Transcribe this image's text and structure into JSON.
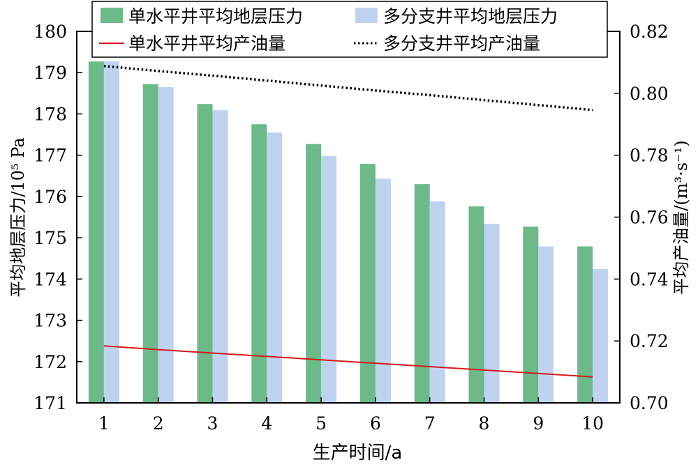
{
  "chart_data": {
    "type": "bar",
    "categories": [
      "1",
      "2",
      "3",
      "4",
      "5",
      "6",
      "7",
      "8",
      "9",
      "10"
    ],
    "xlabel": "生产时间/a",
    "ylabel_left": "平均地层压力/10⁵ Pa",
    "ylabel_right": "平均产油量/(m³·s⁻¹)",
    "ylim_left": [
      171,
      180
    ],
    "ylim_right": [
      0.7,
      0.82
    ],
    "yticks_left": [
      "171",
      "172",
      "173",
      "174",
      "175",
      "176",
      "177",
      "178",
      "179",
      "180"
    ],
    "yticks_right": [
      "0.70",
      "0.72",
      "0.74",
      "0.76",
      "0.78",
      "0.80",
      "0.82"
    ],
    "series": [
      {
        "name": "单水平井平均地层压力",
        "kind": "bar",
        "axis": "left",
        "color": "#6db98a",
        "values": [
          179.27,
          178.72,
          178.24,
          177.75,
          177.27,
          176.79,
          176.3,
          175.76,
          175.27,
          174.79
        ]
      },
      {
        "name": "多分支井平均地层压力",
        "kind": "bar",
        "axis": "left",
        "color": "#bfd3f0",
        "values": [
          179.27,
          178.65,
          178.09,
          177.55,
          176.98,
          176.43,
          175.88,
          175.34,
          174.79,
          174.24
        ]
      },
      {
        "name": "单水平井平均产油量",
        "kind": "line",
        "axis": "right",
        "color": "#d6191a",
        "style": "solid",
        "values": [
          0.7184,
          0.7172,
          0.7161,
          0.715,
          0.7139,
          0.7128,
          0.7117,
          0.7106,
          0.7095,
          0.7084
        ]
      },
      {
        "name": "多分支井平均产油量",
        "kind": "line",
        "axis": "right",
        "color": "#000000",
        "style": "dotted",
        "values": [
          0.8088,
          0.8072,
          0.8057,
          0.8041,
          0.8025,
          0.8009,
          0.7994,
          0.7978,
          0.7962,
          0.7946
        ]
      }
    ],
    "legend": {
      "position": "top"
    },
    "grid": false
  }
}
